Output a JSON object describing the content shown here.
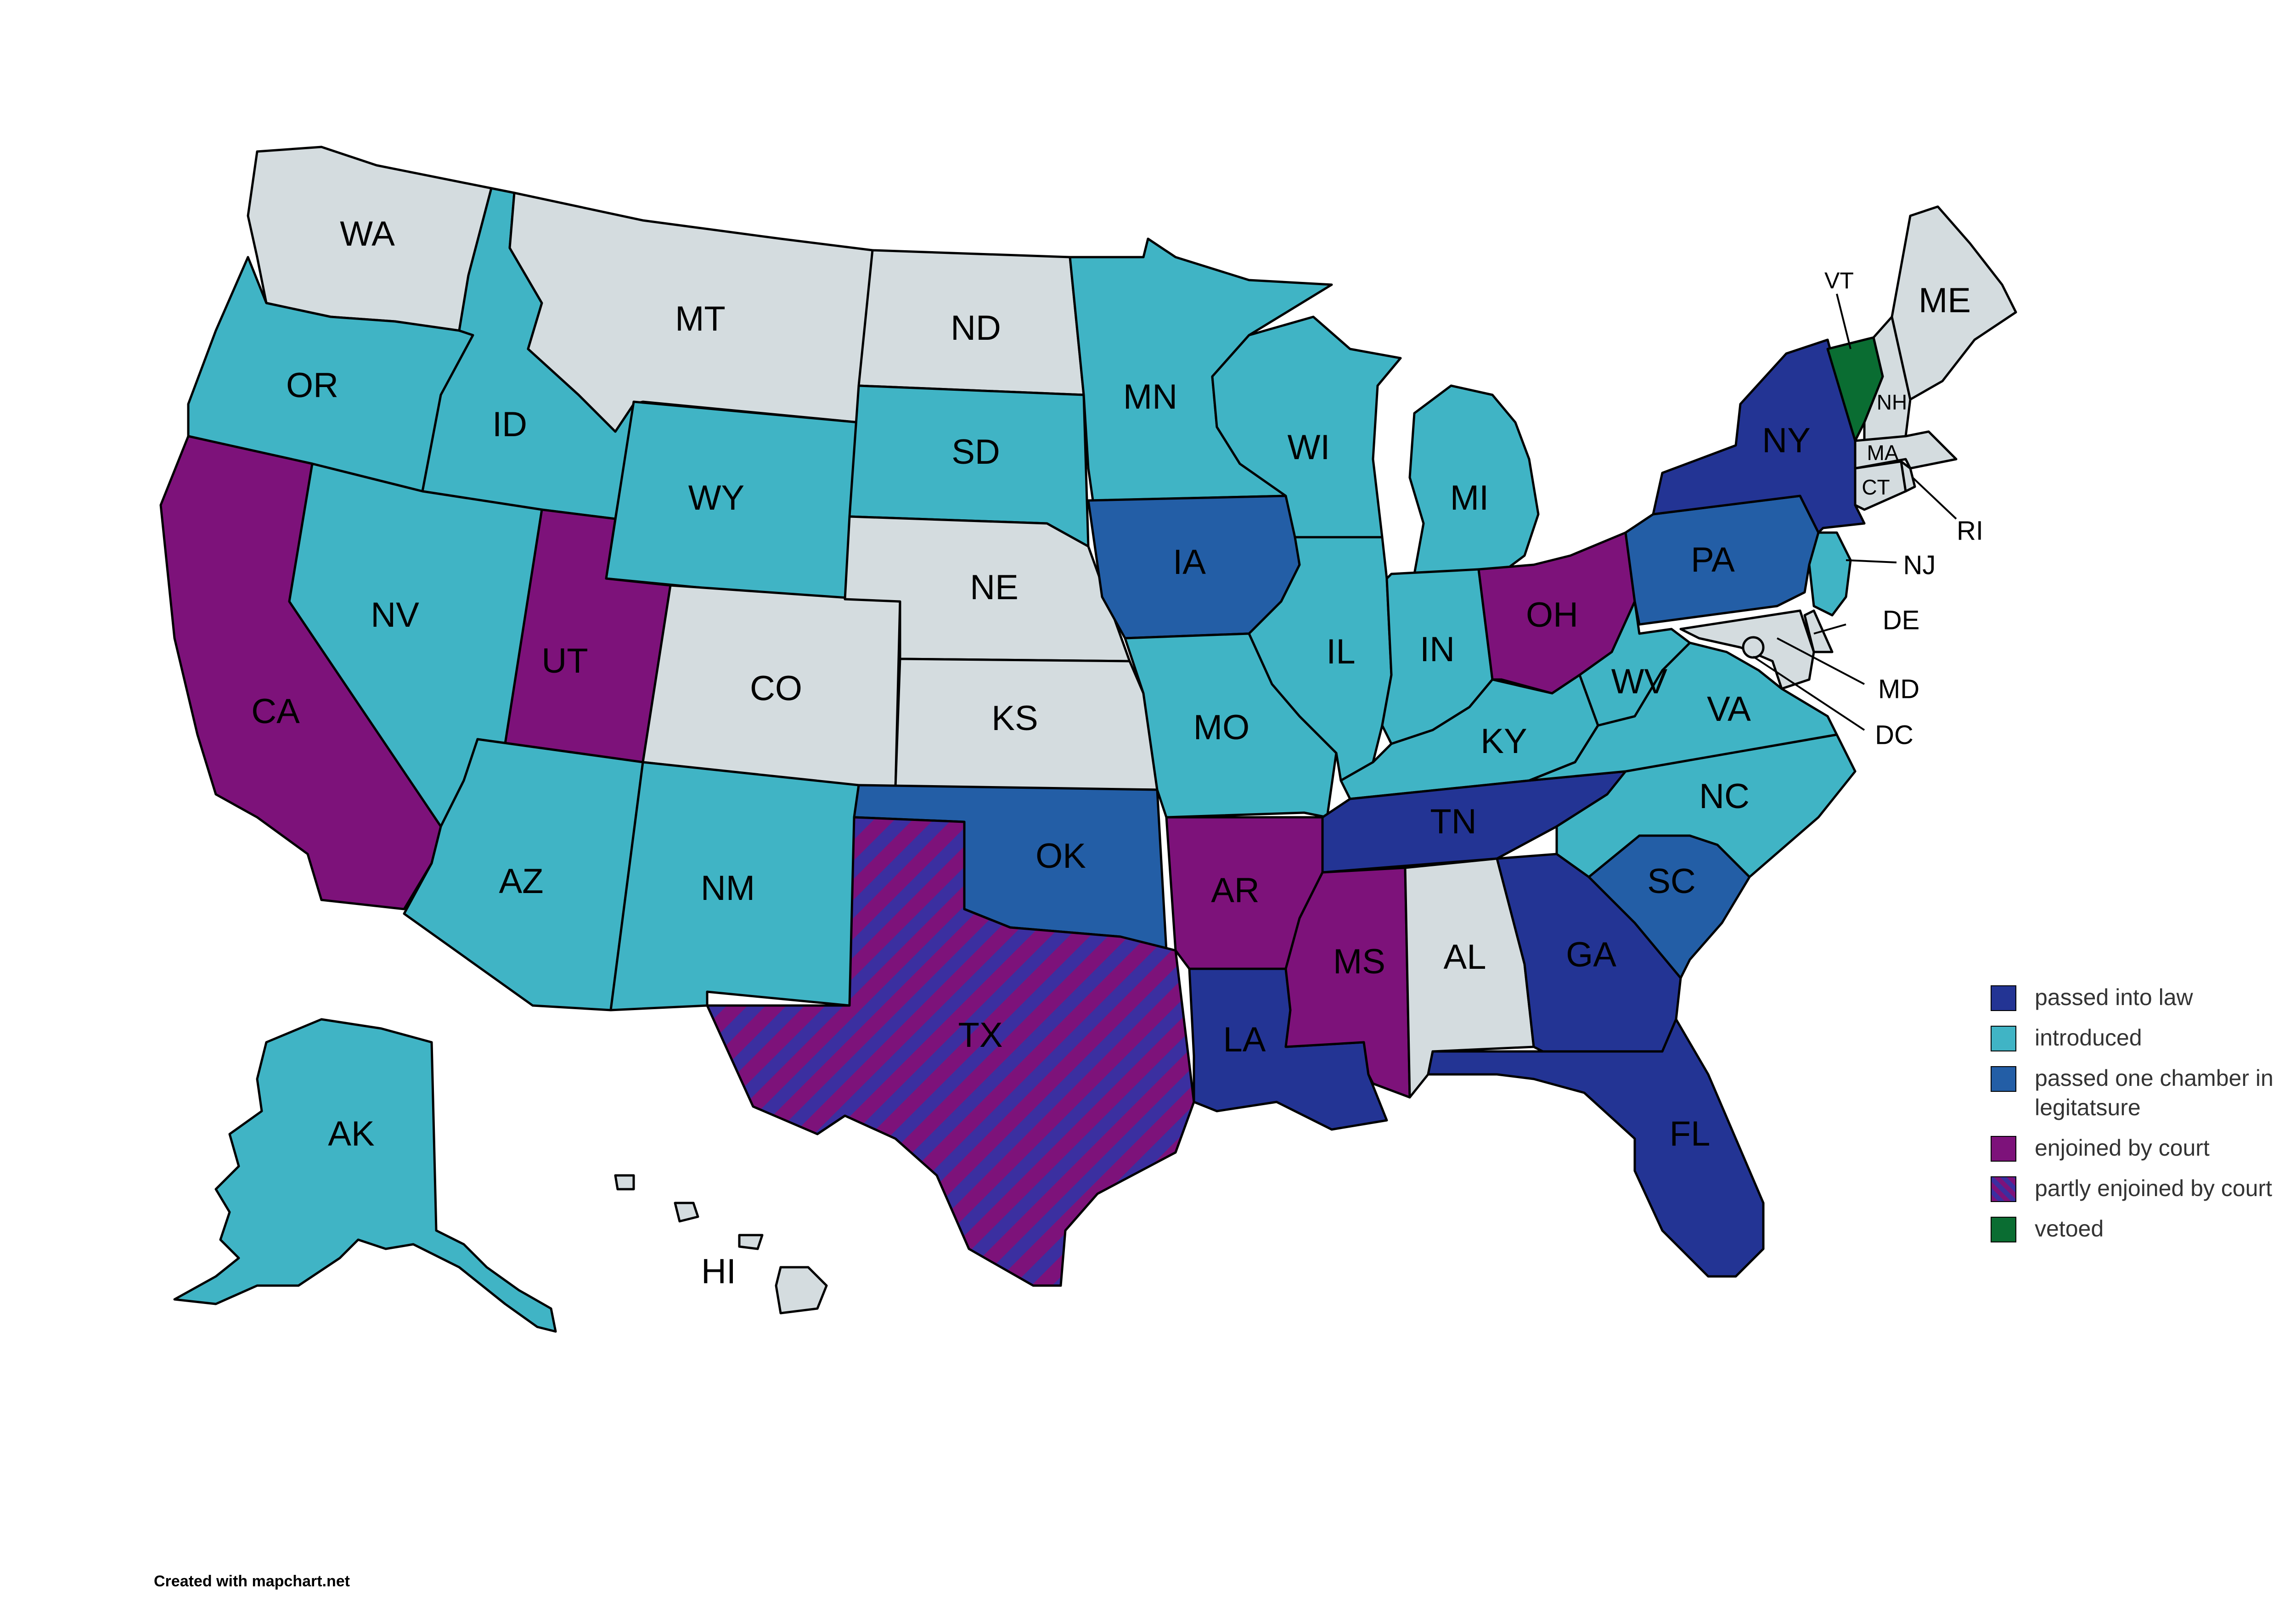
{
  "colors": {
    "passed": "#233494",
    "introduced": "#40b4c5",
    "one_chamber": "#235ea6",
    "enjoined": "#7d127a",
    "vetoed": "#0a6d32",
    "none": "#d4dcdf"
  },
  "states": {
    "WA": {
      "label": "WA",
      "status": "none"
    },
    "OR": {
      "label": "OR",
      "status": "introduced"
    },
    "CA": {
      "label": "CA",
      "status": "enjoined"
    },
    "ID": {
      "label": "ID",
      "status": "introduced"
    },
    "NV": {
      "label": "NV",
      "status": "introduced"
    },
    "MT": {
      "label": "MT",
      "status": "none"
    },
    "WY": {
      "label": "WY",
      "status": "introduced"
    },
    "UT": {
      "label": "UT",
      "status": "enjoined"
    },
    "AZ": {
      "label": "AZ",
      "status": "introduced"
    },
    "CO": {
      "label": "CO",
      "status": "none"
    },
    "NM": {
      "label": "NM",
      "status": "introduced"
    },
    "ND": {
      "label": "ND",
      "status": "none"
    },
    "SD": {
      "label": "SD",
      "status": "introduced"
    },
    "NE": {
      "label": "NE",
      "status": "none"
    },
    "KS": {
      "label": "KS",
      "status": "none"
    },
    "OK": {
      "label": "OK",
      "status": "one_chamber"
    },
    "TX": {
      "label": "TX",
      "status": "partly_enjoined"
    },
    "MN": {
      "label": "MN",
      "status": "introduced"
    },
    "IA": {
      "label": "IA",
      "status": "one_chamber"
    },
    "MO": {
      "label": "MO",
      "status": "introduced"
    },
    "AR": {
      "label": "AR",
      "status": "enjoined"
    },
    "LA": {
      "label": "LA",
      "status": "passed"
    },
    "WI": {
      "label": "WI",
      "status": "introduced"
    },
    "IL": {
      "label": "IL",
      "status": "introduced"
    },
    "MI": {
      "label": "MI",
      "status": "introduced"
    },
    "IN": {
      "label": "IN",
      "status": "introduced"
    },
    "OH": {
      "label": "OH",
      "status": "enjoined"
    },
    "KY": {
      "label": "KY",
      "status": "introduced"
    },
    "TN": {
      "label": "TN",
      "status": "passed"
    },
    "MS": {
      "label": "MS",
      "status": "enjoined"
    },
    "AL": {
      "label": "AL",
      "status": "none"
    },
    "GA": {
      "label": "GA",
      "status": "passed"
    },
    "FL": {
      "label": "FL",
      "status": "passed"
    },
    "SC": {
      "label": "SC",
      "status": "one_chamber"
    },
    "NC": {
      "label": "NC",
      "status": "introduced"
    },
    "VA": {
      "label": "VA",
      "status": "introduced"
    },
    "WV": {
      "label": "WV",
      "status": "introduced"
    },
    "PA": {
      "label": "PA",
      "status": "one_chamber"
    },
    "NY": {
      "label": "NY",
      "status": "passed"
    },
    "VT": {
      "label": "VT",
      "status": "vetoed"
    },
    "NH": {
      "label": "NH",
      "status": "none"
    },
    "ME": {
      "label": "ME",
      "status": "none"
    },
    "MA": {
      "label": "MA",
      "status": "none"
    },
    "CT": {
      "label": "CT",
      "status": "none"
    },
    "RI": {
      "label": "RI",
      "status": "none"
    },
    "NJ": {
      "label": "NJ",
      "status": "introduced"
    },
    "DE": {
      "label": "DE",
      "status": "none"
    },
    "MD": {
      "label": "MD",
      "status": "none"
    },
    "DC": {
      "label": "DC",
      "status": "none"
    },
    "AK": {
      "label": "AK",
      "status": "introduced"
    },
    "HI": {
      "label": "HI",
      "status": "none"
    }
  },
  "legend": [
    {
      "label": "passed into law",
      "color": "#233494"
    },
    {
      "label": "introduced",
      "color": "#40b4c5"
    },
    {
      "label": "passed one chamber in legitatsure",
      "color": "#235ea6"
    },
    {
      "label": "enjoined by court",
      "color": "#7d127a"
    },
    {
      "label": "partly enjoined by court",
      "color": "#7d127a",
      "pattern": "stripes"
    },
    {
      "label": "vetoed",
      "color": "#0a6d32"
    }
  ],
  "credit": "Created with mapchart.net"
}
